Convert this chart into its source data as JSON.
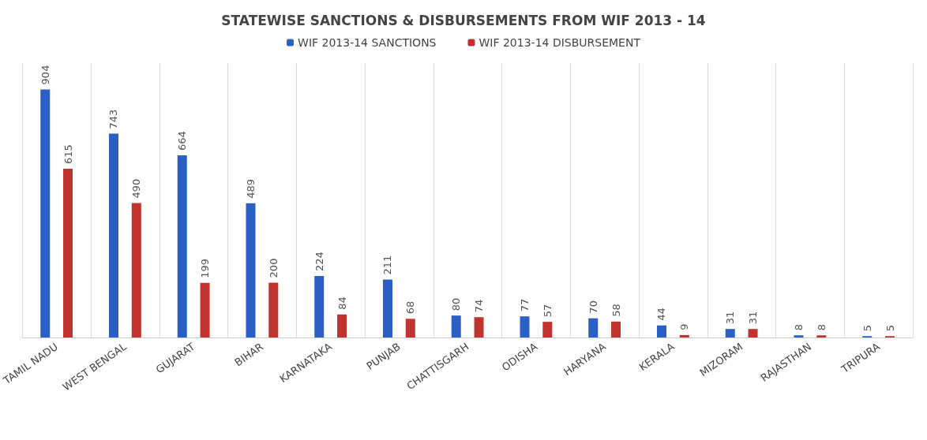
{
  "chart_data": {
    "type": "bar",
    "title": "STATEWISE SANCTIONS & DISBURSEMENTS FROM WIF 2013 - 14",
    "categories": [
      "TAMIL NADU",
      "WEST BENGAL",
      "GUJARAT",
      "BIHAR",
      "KARNATAKA",
      "PUNJAB",
      "CHATTISGARH",
      "ODISHA",
      "HARYANA",
      "KERALA",
      "MIZORAM",
      "RAJASTHAN",
      "TRIPURA"
    ],
    "series": [
      {
        "name": "WIF 2013-14 SANCTIONS",
        "color": "#2a5fc4",
        "values": [
          904,
          743,
          664,
          489,
          224,
          211,
          80,
          77,
          70,
          44,
          31,
          8,
          5
        ]
      },
      {
        "name": "WIF 2013-14 DISBURSEMENT",
        "color": "#c0332e",
        "values": [
          615,
          490,
          199,
          200,
          84,
          68,
          74,
          57,
          58,
          9,
          31,
          8,
          5
        ]
      }
    ],
    "data_labels": true,
    "grid": "x",
    "legend": "top"
  }
}
